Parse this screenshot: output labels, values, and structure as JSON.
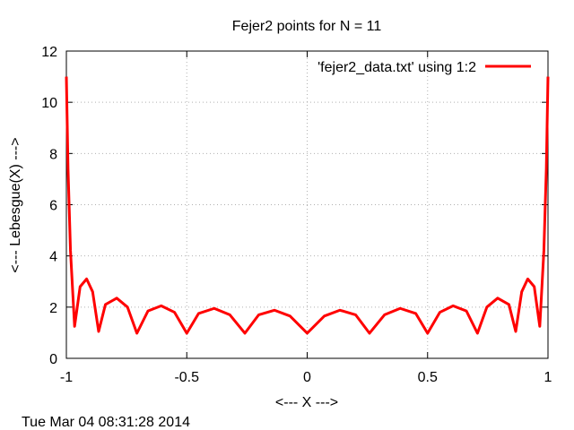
{
  "chart_data": {
    "type": "line",
    "title": "Fejer2 points for N = 11",
    "xlabel": "<--- X --->",
    "ylabel": "<--- Lebesgue(X) --->",
    "xlim": [
      -1,
      1
    ],
    "ylim": [
      0,
      12
    ],
    "xticks": [
      "-1",
      "-0.5",
      "0",
      "0.5",
      "1"
    ],
    "yticks": [
      "0",
      "2",
      "4",
      "6",
      "8",
      "10",
      "12"
    ],
    "grid": true,
    "legend_position": "top-right",
    "series": [
      {
        "name": "'fejer2_data.txt' using 1:2",
        "color": "#ff0000",
        "nodes": [
          -0.9659,
          -0.866,
          -0.7071,
          -0.5,
          -0.2588,
          0.0,
          0.2588,
          0.5,
          0.7071,
          0.866,
          0.9659
        ],
        "x": [
          -1.0,
          -0.9931,
          -0.9829,
          -0.9659,
          -0.9429,
          -0.9159,
          -0.8909,
          -0.866,
          -0.8379,
          -0.7909,
          -0.7461,
          -0.7071,
          -0.6611,
          -0.6061,
          -0.5511,
          -0.5,
          -0.4511,
          -0.3861,
          -0.3211,
          -0.2588,
          -0.2011,
          -0.1361,
          -0.0711,
          0.0,
          0.0711,
          0.1361,
          0.2011,
          0.2588,
          0.3211,
          0.3861,
          0.4511,
          0.5,
          0.5511,
          0.6061,
          0.6611,
          0.7071,
          0.7461,
          0.7909,
          0.8379,
          0.866,
          0.8909,
          0.9159,
          0.9429,
          0.9659,
          0.9829,
          0.9931,
          1.0
        ],
        "y": [
          11.0,
          7.4,
          4.2,
          1.25,
          2.8,
          3.1,
          2.6,
          1.05,
          2.1,
          2.35,
          2.0,
          0.98,
          1.85,
          2.05,
          1.8,
          0.98,
          1.75,
          1.95,
          1.7,
          0.98,
          1.7,
          1.88,
          1.65,
          0.98,
          1.65,
          1.88,
          1.7,
          0.98,
          1.7,
          1.95,
          1.75,
          0.98,
          1.8,
          2.05,
          1.85,
          0.98,
          2.0,
          2.35,
          2.1,
          1.05,
          2.6,
          3.1,
          2.8,
          1.25,
          4.2,
          7.4,
          11.0
        ]
      }
    ]
  },
  "timestamp": "Tue Mar 04 08:31:28 2014"
}
